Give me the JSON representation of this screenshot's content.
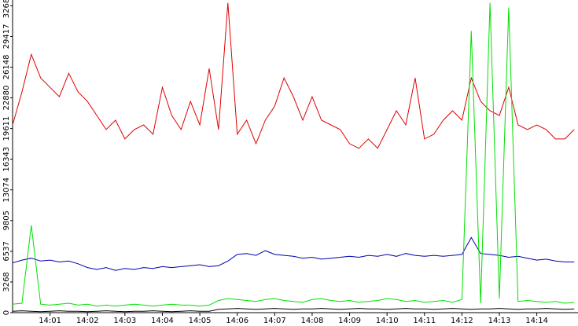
{
  "chart_data": {
    "type": "line",
    "x": [
      0,
      0.25,
      0.5,
      0.75,
      1,
      1.25,
      1.5,
      1.75,
      2,
      2.25,
      2.5,
      2.75,
      3,
      3.25,
      3.5,
      3.75,
      4,
      4.25,
      4.5,
      4.75,
      5,
      5.25,
      5.5,
      5.75,
      6,
      6.25,
      6.5,
      6.75,
      7,
      7.25,
      7.5,
      7.75,
      8,
      8.25,
      8.5,
      8.75,
      9,
      9.25,
      9.5,
      9.75,
      10,
      10.25,
      10.5,
      10.75,
      11,
      11.25,
      11.5,
      11.75,
      12,
      12.25,
      12.5,
      12.75,
      13,
      13.25,
      13.5,
      13.75,
      14,
      14.25,
      14.5,
      14.75,
      15
    ],
    "xlim": [
      0,
      15.1
    ],
    "xticks": [
      {
        "value": 1,
        "label": "14:01"
      },
      {
        "value": 2,
        "label": "14:02"
      },
      {
        "value": 3,
        "label": "14:03"
      },
      {
        "value": 4,
        "label": "14:04"
      },
      {
        "value": 5,
        "label": "14:05"
      },
      {
        "value": 6,
        "label": "14:06"
      },
      {
        "value": 7,
        "label": "14:07"
      },
      {
        "value": 8,
        "label": "14:08"
      },
      {
        "value": 9,
        "label": "14:09"
      },
      {
        "value": 10,
        "label": "14:10"
      },
      {
        "value": 11,
        "label": "14:11"
      },
      {
        "value": 12,
        "label": "14:12"
      },
      {
        "value": 13,
        "label": "14:13"
      },
      {
        "value": 14,
        "label": "14:14"
      }
    ],
    "ylim": [
      0,
      33300
    ],
    "yticks": [
      0,
      3268,
      6537,
      9805,
      13074,
      16343,
      19611,
      22880,
      26148,
      29417,
      32686
    ],
    "series": [
      {
        "color": "#e00000",
        "values": [
          20000,
          23500,
          27500,
          25000,
          24000,
          23000,
          25500,
          23500,
          22500,
          21000,
          19500,
          20500,
          18500,
          19500,
          20000,
          19000,
          24000,
          21000,
          19500,
          22500,
          20000,
          26000,
          19500,
          33000,
          19000,
          20500,
          18000,
          20500,
          22000,
          25000,
          23000,
          20500,
          23000,
          20500,
          20000,
          19500,
          18000,
          17500,
          18500,
          17500,
          19500,
          21500,
          20000,
          25000,
          18500,
          19000,
          20500,
          21500,
          20500,
          25000,
          22500,
          21500,
          21000,
          24000,
          20000,
          19500,
          20000,
          19500,
          18500,
          18500,
          19500
        ]
      },
      {
        "color": "#0000b0",
        "values": [
          5300,
          5600,
          5800,
          5500,
          5600,
          5400,
          5500,
          5200,
          4800,
          4600,
          4800,
          4500,
          4700,
          4600,
          4800,
          4700,
          4900,
          4800,
          4900,
          5000,
          5100,
          4900,
          5000,
          5500,
          6200,
          6300,
          6100,
          6600,
          6200,
          6100,
          6000,
          5800,
          5900,
          5700,
          5800,
          5900,
          6000,
          5900,
          6100,
          6000,
          6200,
          6000,
          6300,
          6100,
          6000,
          6100,
          6000,
          6100,
          6200,
          8000,
          6300,
          6200,
          6100,
          5900,
          6000,
          5800,
          5600,
          5700,
          5500,
          5400,
          5400
        ]
      },
      {
        "color": "#00e000",
        "values": [
          900,
          1000,
          9300,
          900,
          800,
          900,
          1000,
          800,
          900,
          700,
          800,
          700,
          800,
          900,
          800,
          700,
          800,
          900,
          800,
          800,
          700,
          800,
          1300,
          1500,
          1400,
          1300,
          1200,
          1400,
          1500,
          1300,
          1200,
          1100,
          1400,
          1500,
          1300,
          1200,
          1300,
          1100,
          1200,
          1300,
          1500,
          1400,
          1200,
          1300,
          1100,
          1200,
          1300,
          1100,
          1400,
          30000,
          1000,
          33000,
          1500,
          32500,
          1200,
          1300,
          1200,
          1100,
          1200,
          1000,
          1100
        ]
      },
      {
        "color": "#000000",
        "values": [
          150,
          200,
          150,
          100,
          150,
          200,
          150,
          150,
          100,
          150,
          200,
          150,
          100,
          150,
          150,
          200,
          150,
          100,
          150,
          200,
          150,
          150,
          350,
          400,
          450,
          400,
          350,
          400,
          450,
          400,
          350,
          400,
          400,
          450,
          400,
          350,
          400,
          450,
          400,
          400,
          350,
          400,
          450,
          400,
          400,
          350,
          400,
          450,
          400,
          350,
          400,
          400,
          450,
          400,
          350,
          400,
          400,
          450,
          400,
          350,
          400
        ]
      }
    ]
  }
}
